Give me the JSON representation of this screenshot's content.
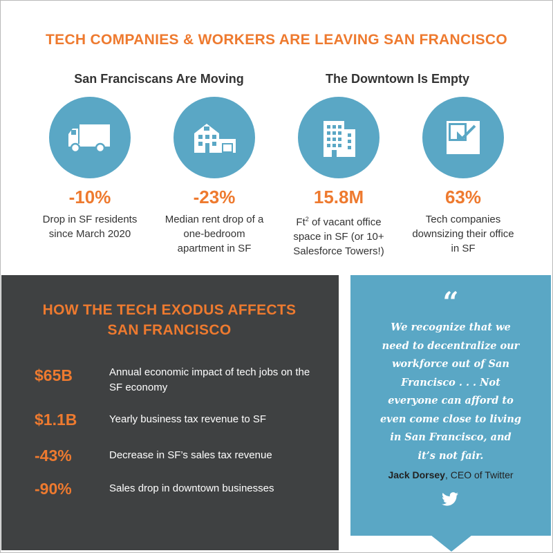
{
  "title": "TECH COMPANIES & WORKERS ARE LEAVING SAN FRANCISCO",
  "sections": {
    "left": "San Franciscans Are Moving",
    "right": "The Downtown Is Empty"
  },
  "stats": [
    {
      "icon": "truck-icon",
      "value": "-10%",
      "desc_lines": [
        "Drop in SF residents",
        "since March 2020"
      ]
    },
    {
      "icon": "house-icon",
      "value": "-23%",
      "desc_lines": [
        "Median rent drop of a",
        "one-bedroom",
        "apartment in SF"
      ]
    },
    {
      "icon": "office-building-icon",
      "value": "15.8M",
      "desc_prefix": "Ft",
      "desc_sup": "2",
      "desc_line1_rest": " of vacant office",
      "desc_lines_rest": [
        "space in SF (or 10+",
        "Salesforce Towers!)"
      ]
    },
    {
      "icon": "shrink-arrow-icon",
      "value": "63%",
      "desc_lines": [
        "Tech companies",
        "downsizing their office",
        "in SF"
      ]
    }
  ],
  "exodus": {
    "title_lines": [
      "HOW THE TECH EXODUS AFFECTS",
      "SAN FRANCISCO"
    ],
    "rows": [
      {
        "value": "$65B",
        "desc": "Annual economic impact of tech jobs on the SF economy"
      },
      {
        "value": "$1.1B",
        "desc": "Yearly business tax revenue to SF"
      },
      {
        "value": "-43%",
        "desc": "Decrease in SF’s sales tax revenue"
      },
      {
        "value": "-90%",
        "desc": "Sales drop in downtown businesses"
      }
    ]
  },
  "quote": {
    "mark": "“",
    "lines": [
      "We recognize that we",
      "need to decentralize our",
      "workforce out of San",
      "Francisco . . . Not",
      "everyone can afford to",
      "even come close to living",
      "in San Francisco, and",
      "it’s not fair."
    ],
    "author": "Jack Dorsey",
    "role": ", CEO of Twitter",
    "icon": "twitter-bird-icon"
  },
  "colors": {
    "accent": "#ee7a2f",
    "blue": "#5aa7c5",
    "dark": "#3f4142"
  }
}
